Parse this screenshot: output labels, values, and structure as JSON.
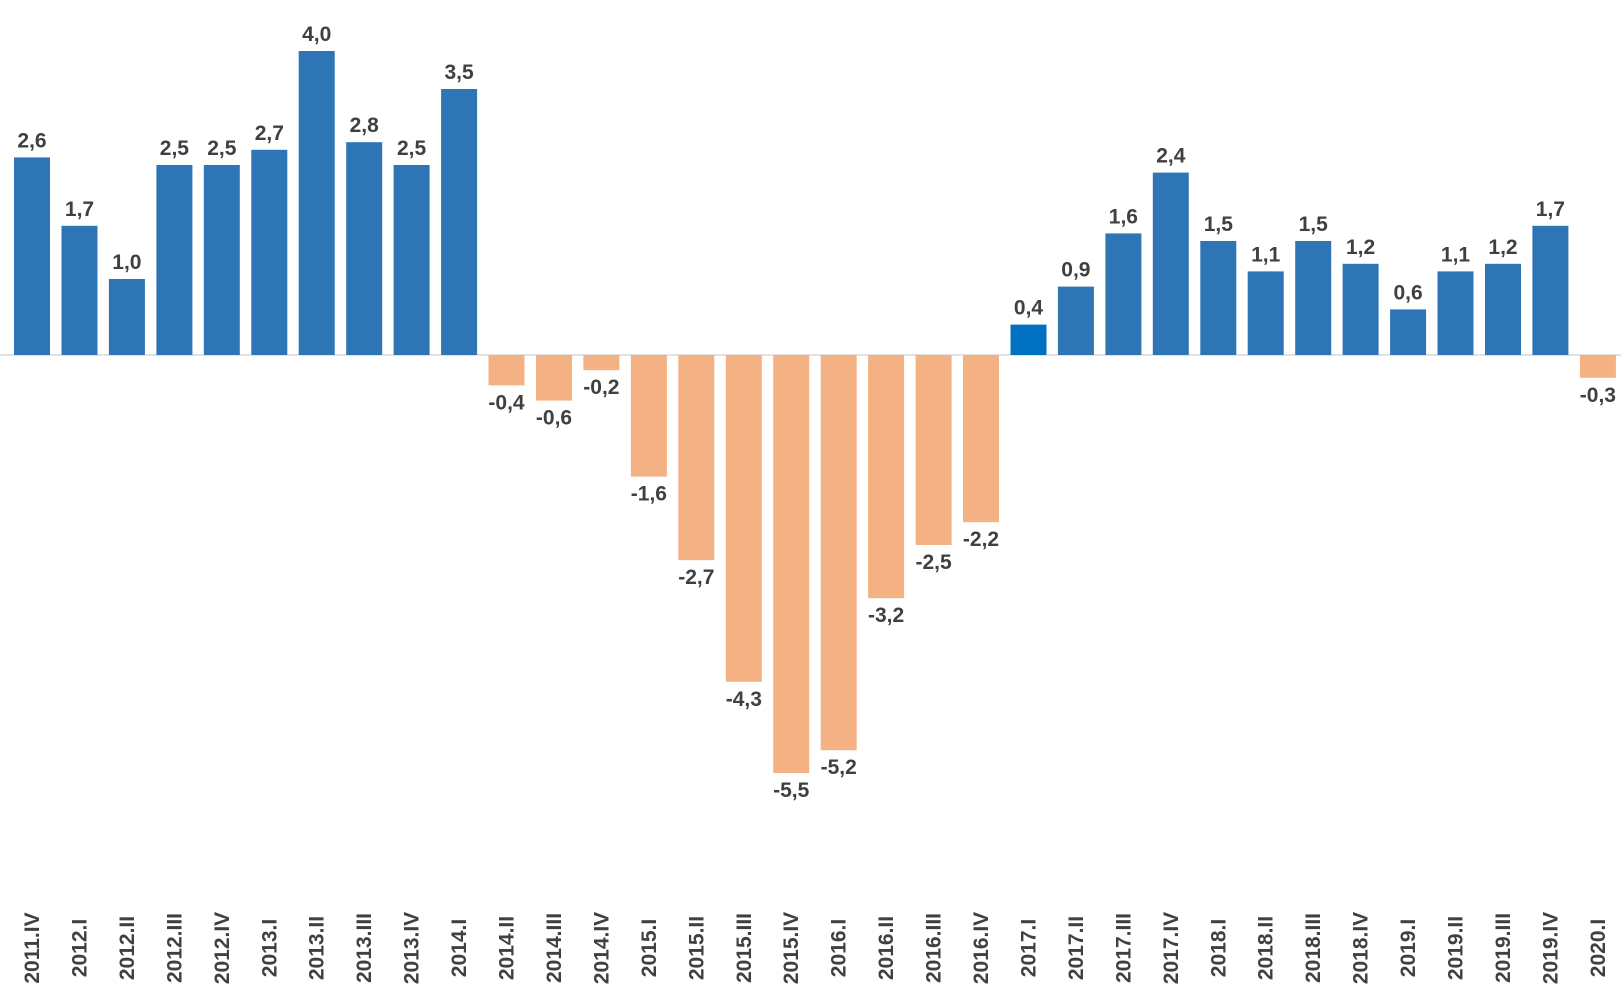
{
  "chart_data": {
    "type": "bar",
    "categories": [
      "2011.IV",
      "2012.I",
      "2012.II",
      "2012.III",
      "2012.IV",
      "2013.I",
      "2013.II",
      "2013.III",
      "2013.IV",
      "2014.I",
      "2014.II",
      "2014.III",
      "2014.IV",
      "2015.I",
      "2015.II",
      "2015.III",
      "2015.IV",
      "2016.I",
      "2016.II",
      "2016.III",
      "2016.IV",
      "2017.I",
      "2017.II",
      "2017.III",
      "2017.IV",
      "2018.I",
      "2018.II",
      "2018.III",
      "2018.IV",
      "2019.I",
      "2019.II",
      "2019.III",
      "2019.IV",
      "2020.I"
    ],
    "values": [
      2.6,
      1.7,
      1.0,
      2.5,
      2.5,
      2.7,
      4.0,
      2.8,
      2.5,
      3.5,
      -0.4,
      -0.6,
      -0.2,
      -1.6,
      -2.7,
      -4.3,
      -5.5,
      -5.2,
      -3.2,
      -2.5,
      -2.2,
      0.4,
      0.9,
      1.6,
      2.4,
      1.5,
      1.1,
      1.5,
      1.2,
      0.6,
      1.1,
      1.2,
      1.7,
      -0.3
    ],
    "data_labels": [
      "2,6",
      "1,7",
      "1,0",
      "2,5",
      "2,5",
      "2,7",
      "4,0",
      "2,8",
      "2,5",
      "3,5",
      "-0,4",
      "-0,6",
      "-0,2",
      "-1,6",
      "-2,7",
      "-4,3",
      "-5,5",
      "-5,2",
      "-3,2",
      "-2,5",
      "-2,2",
      "0,4",
      "0,9",
      "1,6",
      "2,4",
      "1,5",
      "1,1",
      "1,5",
      "1,2",
      "0,6",
      "1,1",
      "1,2",
      "1,7",
      "-0,3"
    ],
    "title": "",
    "xlabel": "",
    "ylabel": "",
    "grid": false,
    "legend": "none",
    "colors": {
      "positive": "#2E75B6",
      "negative": "#F4B183",
      "highlight": "#0070C0",
      "axis": "#D9D9D9",
      "label": "#404040"
    },
    "highlight_category": "2017.I"
  }
}
